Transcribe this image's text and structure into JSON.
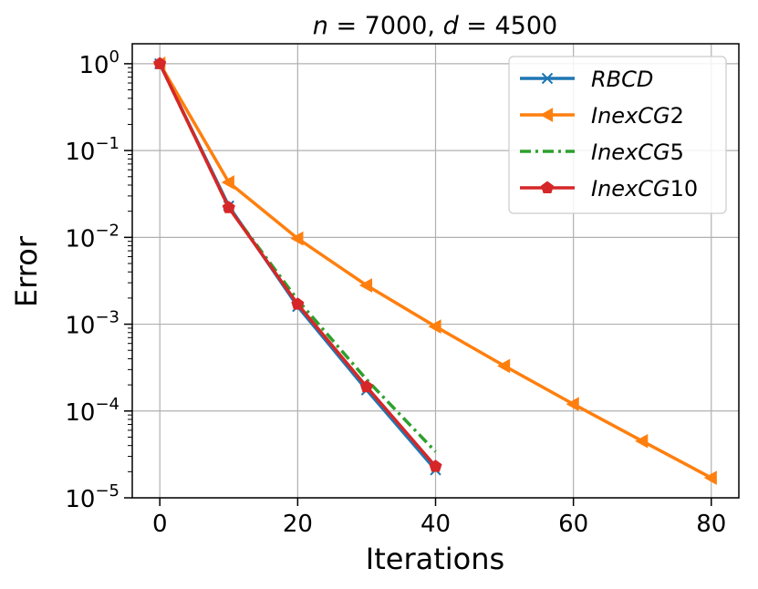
{
  "chart_data": {
    "type": "line",
    "title_parts": {
      "n_var": "n",
      "n_rest": " = 7000, ",
      "d_var": "d",
      "d_rest": " = 4500"
    },
    "xlabel": "Iterations",
    "ylabel": "Error",
    "yscale": "log",
    "xlim": [
      -4,
      84
    ],
    "ylim_log10": [
      -5,
      0.23
    ],
    "grid": true,
    "legend_position": "top-right",
    "x_ticks": [
      {
        "value": 0,
        "label": "0"
      },
      {
        "value": 20,
        "label": "20"
      },
      {
        "value": 40,
        "label": "40"
      },
      {
        "value": 60,
        "label": "60"
      },
      {
        "value": 80,
        "label": "80"
      }
    ],
    "y_ticks": [
      {
        "exp": 0,
        "base": "10",
        "sup": "0"
      },
      {
        "exp": -1,
        "base": "10",
        "sup": "−1"
      },
      {
        "exp": -2,
        "base": "10",
        "sup": "−2"
      },
      {
        "exp": -3,
        "base": "10",
        "sup": "−3"
      },
      {
        "exp": -4,
        "base": "10",
        "sup": "−4"
      },
      {
        "exp": -5,
        "base": "10",
        "sup": "−5"
      }
    ],
    "series": [
      {
        "name": "RBCD",
        "legend_main": "RBCD",
        "legend_suffix": "",
        "color": "#1f77b4",
        "marker": "x",
        "dash": "",
        "x": [
          0,
          10,
          20,
          30,
          40
        ],
        "y": [
          1.0,
          0.023,
          0.0016,
          0.000175,
          2.1e-05
        ]
      },
      {
        "name": "InexCG2",
        "legend_main": "InexCG",
        "legend_suffix": "2",
        "color": "#ff7f0e",
        "marker": "triangle-left",
        "dash": "",
        "x": [
          0,
          10,
          20,
          30,
          40,
          50,
          60,
          70,
          80
        ],
        "y": [
          1.0,
          0.043,
          0.0097,
          0.0028,
          0.00094,
          0.00033,
          0.00012,
          4.5e-05,
          1.7e-05
        ]
      },
      {
        "name": "InexCG5",
        "legend_main": "InexCG",
        "legend_suffix": "5",
        "color": "#2ca02c",
        "marker": "none",
        "dash": "12 5 3 5",
        "x": [
          0,
          10,
          20,
          30,
          40
        ],
        "y": [
          1.0,
          0.022,
          0.0019,
          0.00023,
          3.4e-05
        ]
      },
      {
        "name": "InexCG10",
        "legend_main": "InexCG",
        "legend_suffix": "10",
        "color": "#d62728",
        "marker": "pentagon",
        "dash": "",
        "x": [
          0,
          10,
          20,
          30,
          40
        ],
        "y": [
          1.0,
          0.022,
          0.0017,
          0.00019,
          2.3e-05
        ]
      }
    ]
  }
}
